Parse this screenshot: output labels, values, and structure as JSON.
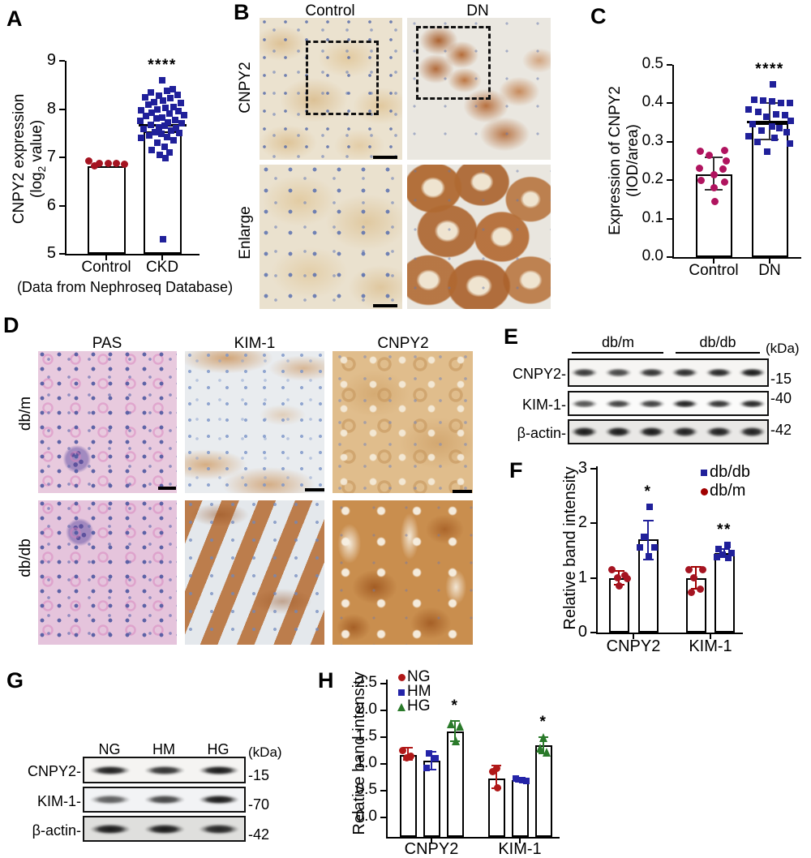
{
  "panels": {
    "A": {
      "label": "A"
    },
    "B": {
      "label": "B",
      "col_headers": [
        "Control",
        "DN"
      ],
      "row_labels": [
        "CNPY2",
        "Enlarge"
      ]
    },
    "C": {
      "label": "C"
    },
    "D": {
      "label": "D",
      "col_headers": [
        "PAS",
        "KIM-1",
        "CNPY2"
      ],
      "row_labels": [
        "db/m",
        "db/db"
      ]
    },
    "E": {
      "label": "E"
    },
    "F": {
      "label": "F"
    },
    "G": {
      "label": "G"
    },
    "H": {
      "label": "H"
    }
  },
  "axis_text": {
    "A_ylabel1": "CNPY2 expression",
    "A_ylabel2a": "(log",
    "A_ylabel2b": "2",
    "A_ylabel2c": " value)",
    "C_ylabel1": "Expression of CNPY2",
    "C_ylabel2": "(IOD/area)",
    "F_ylabel": "Relative band intensity",
    "H_ylabel": "Relative band intensity"
  },
  "blots": {
    "E": {
      "group_labels": [
        "db/m",
        "db/db"
      ],
      "kda": "(kDa)",
      "rows": [
        {
          "protein": "CNPY2-",
          "marker": "-15",
          "bands": [
            0.7,
            0.6,
            0.75,
            0.8,
            0.85,
            0.95
          ]
        },
        {
          "protein": "KIM-1-",
          "marker": "-40",
          "bands": [
            0.5,
            0.65,
            0.65,
            0.9,
            0.75,
            0.85
          ]
        },
        {
          "protein": "β-actin-",
          "marker": "-42",
          "bands": [
            0.95,
            0.95,
            0.95,
            0.9,
            0.9,
            0.9
          ]
        }
      ]
    },
    "G": {
      "lane_labels": [
        "NG",
        "HM",
        "HG"
      ],
      "kda": "(kDa)",
      "rows": [
        {
          "protein": "CNPY2-",
          "marker": "-15",
          "bands": [
            0.9,
            0.75,
            0.95
          ]
        },
        {
          "protein": "KIM-1-",
          "marker": "-70",
          "bands": [
            0.4,
            0.6,
            0.95
          ]
        },
        {
          "protein": "β-actin-",
          "marker": "-42",
          "bands": [
            0.95,
            0.95,
            0.85
          ]
        }
      ]
    }
  },
  "chart_data": [
    {
      "id": "A",
      "type": "bar",
      "title": "",
      "ylabel": "CNPY2 expression (log2 value)",
      "ylim": [
        5,
        9
      ],
      "yticks": [
        "5",
        "6",
        "7",
        "8",
        "9"
      ],
      "categories": [
        "Control",
        "CKD"
      ],
      "caption": "(Data from Nephroseq Database)",
      "bars": [
        {
          "category": "Control",
          "value": 6.82,
          "color": "#a51421",
          "shape": "circle",
          "points": [
            [
              -0.75,
              6.93
            ],
            [
              -0.3,
              6.88
            ],
            [
              0.1,
              6.87
            ],
            [
              0.45,
              6.87
            ],
            [
              0.8,
              6.85
            ],
            [
              -0.5,
              6.82
            ]
          ]
        },
        {
          "category": "CKD",
          "value": 7.53,
          "mean_line": 7.67,
          "color": "#20209a",
          "shape": "square",
          "sig": "****",
          "points": [
            [
              0.0,
              8.6
            ],
            [
              0.45,
              8.42
            ],
            [
              0.2,
              8.38
            ],
            [
              -0.5,
              8.35
            ],
            [
              0.65,
              8.3
            ],
            [
              -0.15,
              8.28
            ],
            [
              -0.75,
              8.25
            ],
            [
              0.35,
              8.22
            ],
            [
              0.05,
              8.18
            ],
            [
              -0.35,
              8.15
            ],
            [
              0.8,
              8.12
            ],
            [
              -0.6,
              8.1
            ],
            [
              0.5,
              8.05
            ],
            [
              0.15,
              8.02
            ],
            [
              -0.2,
              8.0
            ],
            [
              -0.9,
              7.98
            ],
            [
              0.7,
              7.95
            ],
            [
              -0.45,
              7.92
            ],
            [
              0.3,
              7.9
            ],
            [
              0.95,
              7.88
            ],
            [
              -0.7,
              7.85
            ],
            [
              0.0,
              7.82
            ],
            [
              -0.25,
              7.8
            ],
            [
              0.55,
              7.78
            ],
            [
              -0.95,
              7.75
            ],
            [
              0.25,
              7.72
            ],
            [
              0.85,
              7.7
            ],
            [
              -0.5,
              7.68
            ],
            [
              0.1,
              7.65
            ],
            [
              -0.15,
              7.62
            ],
            [
              0.6,
              7.6
            ],
            [
              -0.8,
              7.58
            ],
            [
              0.4,
              7.55
            ],
            [
              -0.3,
              7.52
            ],
            [
              0.75,
              7.5
            ],
            [
              -0.05,
              7.48
            ],
            [
              -0.55,
              7.45
            ],
            [
              0.2,
              7.42
            ],
            [
              -0.9,
              7.4
            ],
            [
              0.5,
              7.35
            ],
            [
              -0.2,
              7.3
            ],
            [
              0.1,
              7.22
            ],
            [
              -0.45,
              7.15
            ],
            [
              0.3,
              7.1
            ],
            [
              -0.1,
              7.05
            ],
            [
              0.15,
              6.98
            ],
            [
              0.05,
              5.3
            ]
          ]
        }
      ]
    },
    {
      "id": "C",
      "type": "bar",
      "title": "",
      "ylabel": "Expression of CNPY2 (IOD/area)",
      "ylim": [
        0,
        0.5
      ],
      "yticks": [
        "0.0",
        "0.1",
        "0.2",
        "0.3",
        "0.4",
        "0.5"
      ],
      "categories": [
        "Control",
        "DN"
      ],
      "bars": [
        {
          "category": "Control",
          "value": 0.215,
          "err": [
            0.175,
            0.26
          ],
          "err_color": "#333333",
          "color": "#b0145f",
          "shape": "circle",
          "points": [
            [
              -0.6,
              0.275
            ],
            [
              0.5,
              0.278
            ],
            [
              -0.2,
              0.265
            ],
            [
              0.55,
              0.25
            ],
            [
              -0.65,
              0.23
            ],
            [
              0.4,
              0.228
            ],
            [
              0.0,
              0.215
            ],
            [
              -0.55,
              0.2
            ],
            [
              0.5,
              0.195
            ],
            [
              0.0,
              0.18
            ],
            [
              0.05,
              0.145
            ]
          ]
        },
        {
          "category": "DN",
          "value": 0.348,
          "err": [
            0.305,
            0.4
          ],
          "err_color": "#333333",
          "mean_line": 0.352,
          "color": "#20209a",
          "shape": "square",
          "sig": "****",
          "points": [
            [
              0.15,
              0.45
            ],
            [
              -0.7,
              0.41
            ],
            [
              -0.3,
              0.408
            ],
            [
              0.1,
              0.405
            ],
            [
              0.5,
              0.4
            ],
            [
              0.9,
              0.4
            ],
            [
              -0.95,
              0.385
            ],
            [
              -0.5,
              0.378
            ],
            [
              0.3,
              0.372
            ],
            [
              0.7,
              0.37
            ],
            [
              -0.15,
              0.365
            ],
            [
              0.95,
              0.355
            ],
            [
              -0.75,
              0.345
            ],
            [
              0.1,
              0.34
            ],
            [
              0.45,
              0.335
            ],
            [
              -0.35,
              0.33
            ],
            [
              0.75,
              0.325
            ],
            [
              -0.95,
              0.315
            ],
            [
              0.2,
              0.31
            ],
            [
              -0.55,
              0.3
            ],
            [
              0.9,
              0.295
            ],
            [
              -0.1,
              0.275
            ]
          ]
        }
      ]
    },
    {
      "id": "F",
      "type": "bar",
      "title": "",
      "ylabel": "Relative band intensity",
      "ylim": [
        0,
        3
      ],
      "yticks": [
        "0",
        "1",
        "2",
        "3"
      ],
      "categories": [
        "CNPY2",
        "KIM-1"
      ],
      "legend": [
        {
          "label": "db/db",
          "color": "#20209a",
          "shape": "square"
        },
        {
          "label": "db/m",
          "color": "#a00000",
          "shape": "circle"
        }
      ],
      "bars": [
        {
          "category": "CNPY2",
          "series": "db/m",
          "value": 1.0,
          "err": [
            0.87,
            1.13
          ],
          "err_color": "#a00000",
          "color": "#a51421",
          "shape": "circle",
          "points": [
            [
              -0.5,
              1.15
            ],
            [
              0.4,
              1.05
            ],
            [
              -0.1,
              1.0
            ],
            [
              0.6,
              0.98
            ],
            [
              0.0,
              0.85
            ]
          ]
        },
        {
          "category": "CNPY2",
          "series": "db/db",
          "value": 1.7,
          "err": [
            1.33,
            2.05
          ],
          "err_color": "#20209a",
          "color": "#20209a",
          "shape": "square",
          "sig": "*",
          "points": [
            [
              0.1,
              2.3
            ],
            [
              -0.3,
              1.75
            ],
            [
              -0.55,
              1.55
            ],
            [
              0.45,
              1.55
            ],
            [
              0.05,
              1.4
            ]
          ]
        },
        {
          "category": "KIM-1",
          "series": "db/m",
          "value": 1.0,
          "err": [
            0.8,
            1.2
          ],
          "err_color": "#a00000",
          "color": "#a51421",
          "shape": "circle",
          "points": [
            [
              -0.5,
              1.15
            ],
            [
              0.5,
              1.15
            ],
            [
              -0.15,
              1.0
            ],
            [
              0.3,
              0.8
            ],
            [
              -0.3,
              0.73
            ]
          ]
        },
        {
          "category": "KIM-1",
          "series": "db/db",
          "value": 1.45,
          "err": [
            1.38,
            1.52
          ],
          "err_color": "#20209a",
          "color": "#20209a",
          "shape": "square",
          "sig": "**",
          "points": [
            [
              0.2,
              1.6
            ],
            [
              -0.4,
              1.52
            ],
            [
              0.5,
              1.45
            ],
            [
              -0.1,
              1.42
            ],
            [
              -0.5,
              1.38
            ],
            [
              0.3,
              1.36
            ]
          ]
        }
      ]
    },
    {
      "id": "H",
      "type": "bar",
      "title": "",
      "ylabel": "Relative band intensity",
      "ylim": [
        0,
        2.5
      ],
      "yticks": [
        "0.0",
        "0.5",
        "1.0",
        "1.5",
        "2.0",
        "2.5"
      ],
      "categories": [
        "CNPY2",
        "KIM-1"
      ],
      "legend": [
        {
          "label": "NG",
          "color": "#b01818",
          "shape": "circle"
        },
        {
          "label": "HM",
          "color": "#2424a8",
          "shape": "square"
        },
        {
          "label": "HG",
          "color": "#2a7a2a",
          "shape": "triangle"
        }
      ],
      "bars": [
        {
          "category": "CNPY2",
          "series": "NG",
          "value": 1.17,
          "err": [
            1.08,
            1.3
          ],
          "err_color": "#b01818",
          "color": "#b01818",
          "shape": "circle",
          "points": [
            [
              -0.4,
              1.25
            ],
            [
              0.2,
              1.15
            ],
            [
              -0.1,
              1.12
            ]
          ]
        },
        {
          "category": "CNPY2",
          "series": "HM",
          "value": 1.06,
          "err": [
            0.9,
            1.22
          ],
          "err_color": "#2424a8",
          "color": "#2424a8",
          "shape": "square",
          "points": [
            [
              -0.2,
              1.2
            ],
            [
              0.3,
              1.1
            ],
            [
              -0.4,
              0.93
            ]
          ]
        },
        {
          "category": "CNPY2",
          "series": "HG",
          "value": 1.6,
          "err": [
            1.42,
            1.8
          ],
          "err_color": "#2a7a2a",
          "color": "#2a7a2a",
          "shape": "triangle",
          "sig": "*",
          "points": [
            [
              -0.3,
              1.75
            ],
            [
              0.4,
              1.7
            ],
            [
              0.1,
              1.43
            ]
          ]
        },
        {
          "category": "KIM-1",
          "series": "NG",
          "value": 0.73,
          "err": [
            0.55,
            0.97
          ],
          "err_color": "#b01818",
          "color": "#b01818",
          "shape": "circle",
          "points": [
            [
              0.0,
              0.92
            ],
            [
              -0.3,
              0.85
            ],
            [
              0.1,
              0.55
            ]
          ]
        },
        {
          "category": "KIM-1",
          "series": "HM",
          "value": 0.7,
          "err": [
            0.66,
            0.74
          ],
          "err_color": "#2424a8",
          "color": "#2424a8",
          "shape": "square",
          "points": [
            [
              -0.3,
              0.72
            ],
            [
              0.2,
              0.7
            ],
            [
              0.5,
              0.68
            ]
          ]
        },
        {
          "category": "KIM-1",
          "series": "HG",
          "value": 1.35,
          "err": [
            1.2,
            1.5
          ],
          "err_color": "#2a7a2a",
          "color": "#2a7a2a",
          "shape": "triangle",
          "sig": "*",
          "points": [
            [
              0.0,
              1.5
            ],
            [
              -0.2,
              1.3
            ],
            [
              0.3,
              1.22
            ]
          ]
        }
      ]
    }
  ]
}
